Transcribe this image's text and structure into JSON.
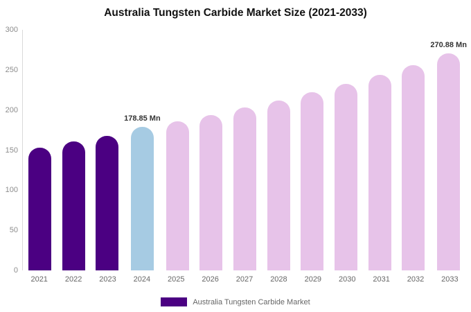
{
  "title": "Australia Tungsten Carbide Market Size (2021-2033)",
  "legend": {
    "label": "Australia Tungsten Carbide Market",
    "swatch_color": "#4B0082"
  },
  "chart_data": {
    "type": "bar",
    "title": "Australia Tungsten Carbide Market Size (2021-2033)",
    "xlabel": "",
    "ylabel": "",
    "categories": [
      "2021",
      "2022",
      "2023",
      "2024",
      "2025",
      "2026",
      "2027",
      "2028",
      "2029",
      "2030",
      "2031",
      "2032",
      "2033"
    ],
    "values": [
      153,
      161,
      168,
      178.85,
      186,
      194,
      203,
      212,
      222,
      233,
      244,
      256,
      270.88
    ],
    "ylim": [
      0,
      300
    ],
    "yticks": [
      0,
      50,
      100,
      150,
      200,
      250,
      300
    ],
    "grid": false,
    "legend_position": "bottom",
    "colors": {
      "historical": "#4B0082",
      "highlight": "#A6CBE3",
      "forecast": "#E7C3E9"
    },
    "bar_colors": [
      "#4B0082",
      "#4B0082",
      "#4B0082",
      "#A6CBE3",
      "#E7C3E9",
      "#E7C3E9",
      "#E7C3E9",
      "#E7C3E9",
      "#E7C3E9",
      "#E7C3E9",
      "#E7C3E9",
      "#E7C3E9",
      "#E7C3E9"
    ],
    "annotations": [
      {
        "category": "2024",
        "text": "178.85 Mn"
      },
      {
        "category": "2033",
        "text": "270.88 Mn"
      }
    ]
  }
}
